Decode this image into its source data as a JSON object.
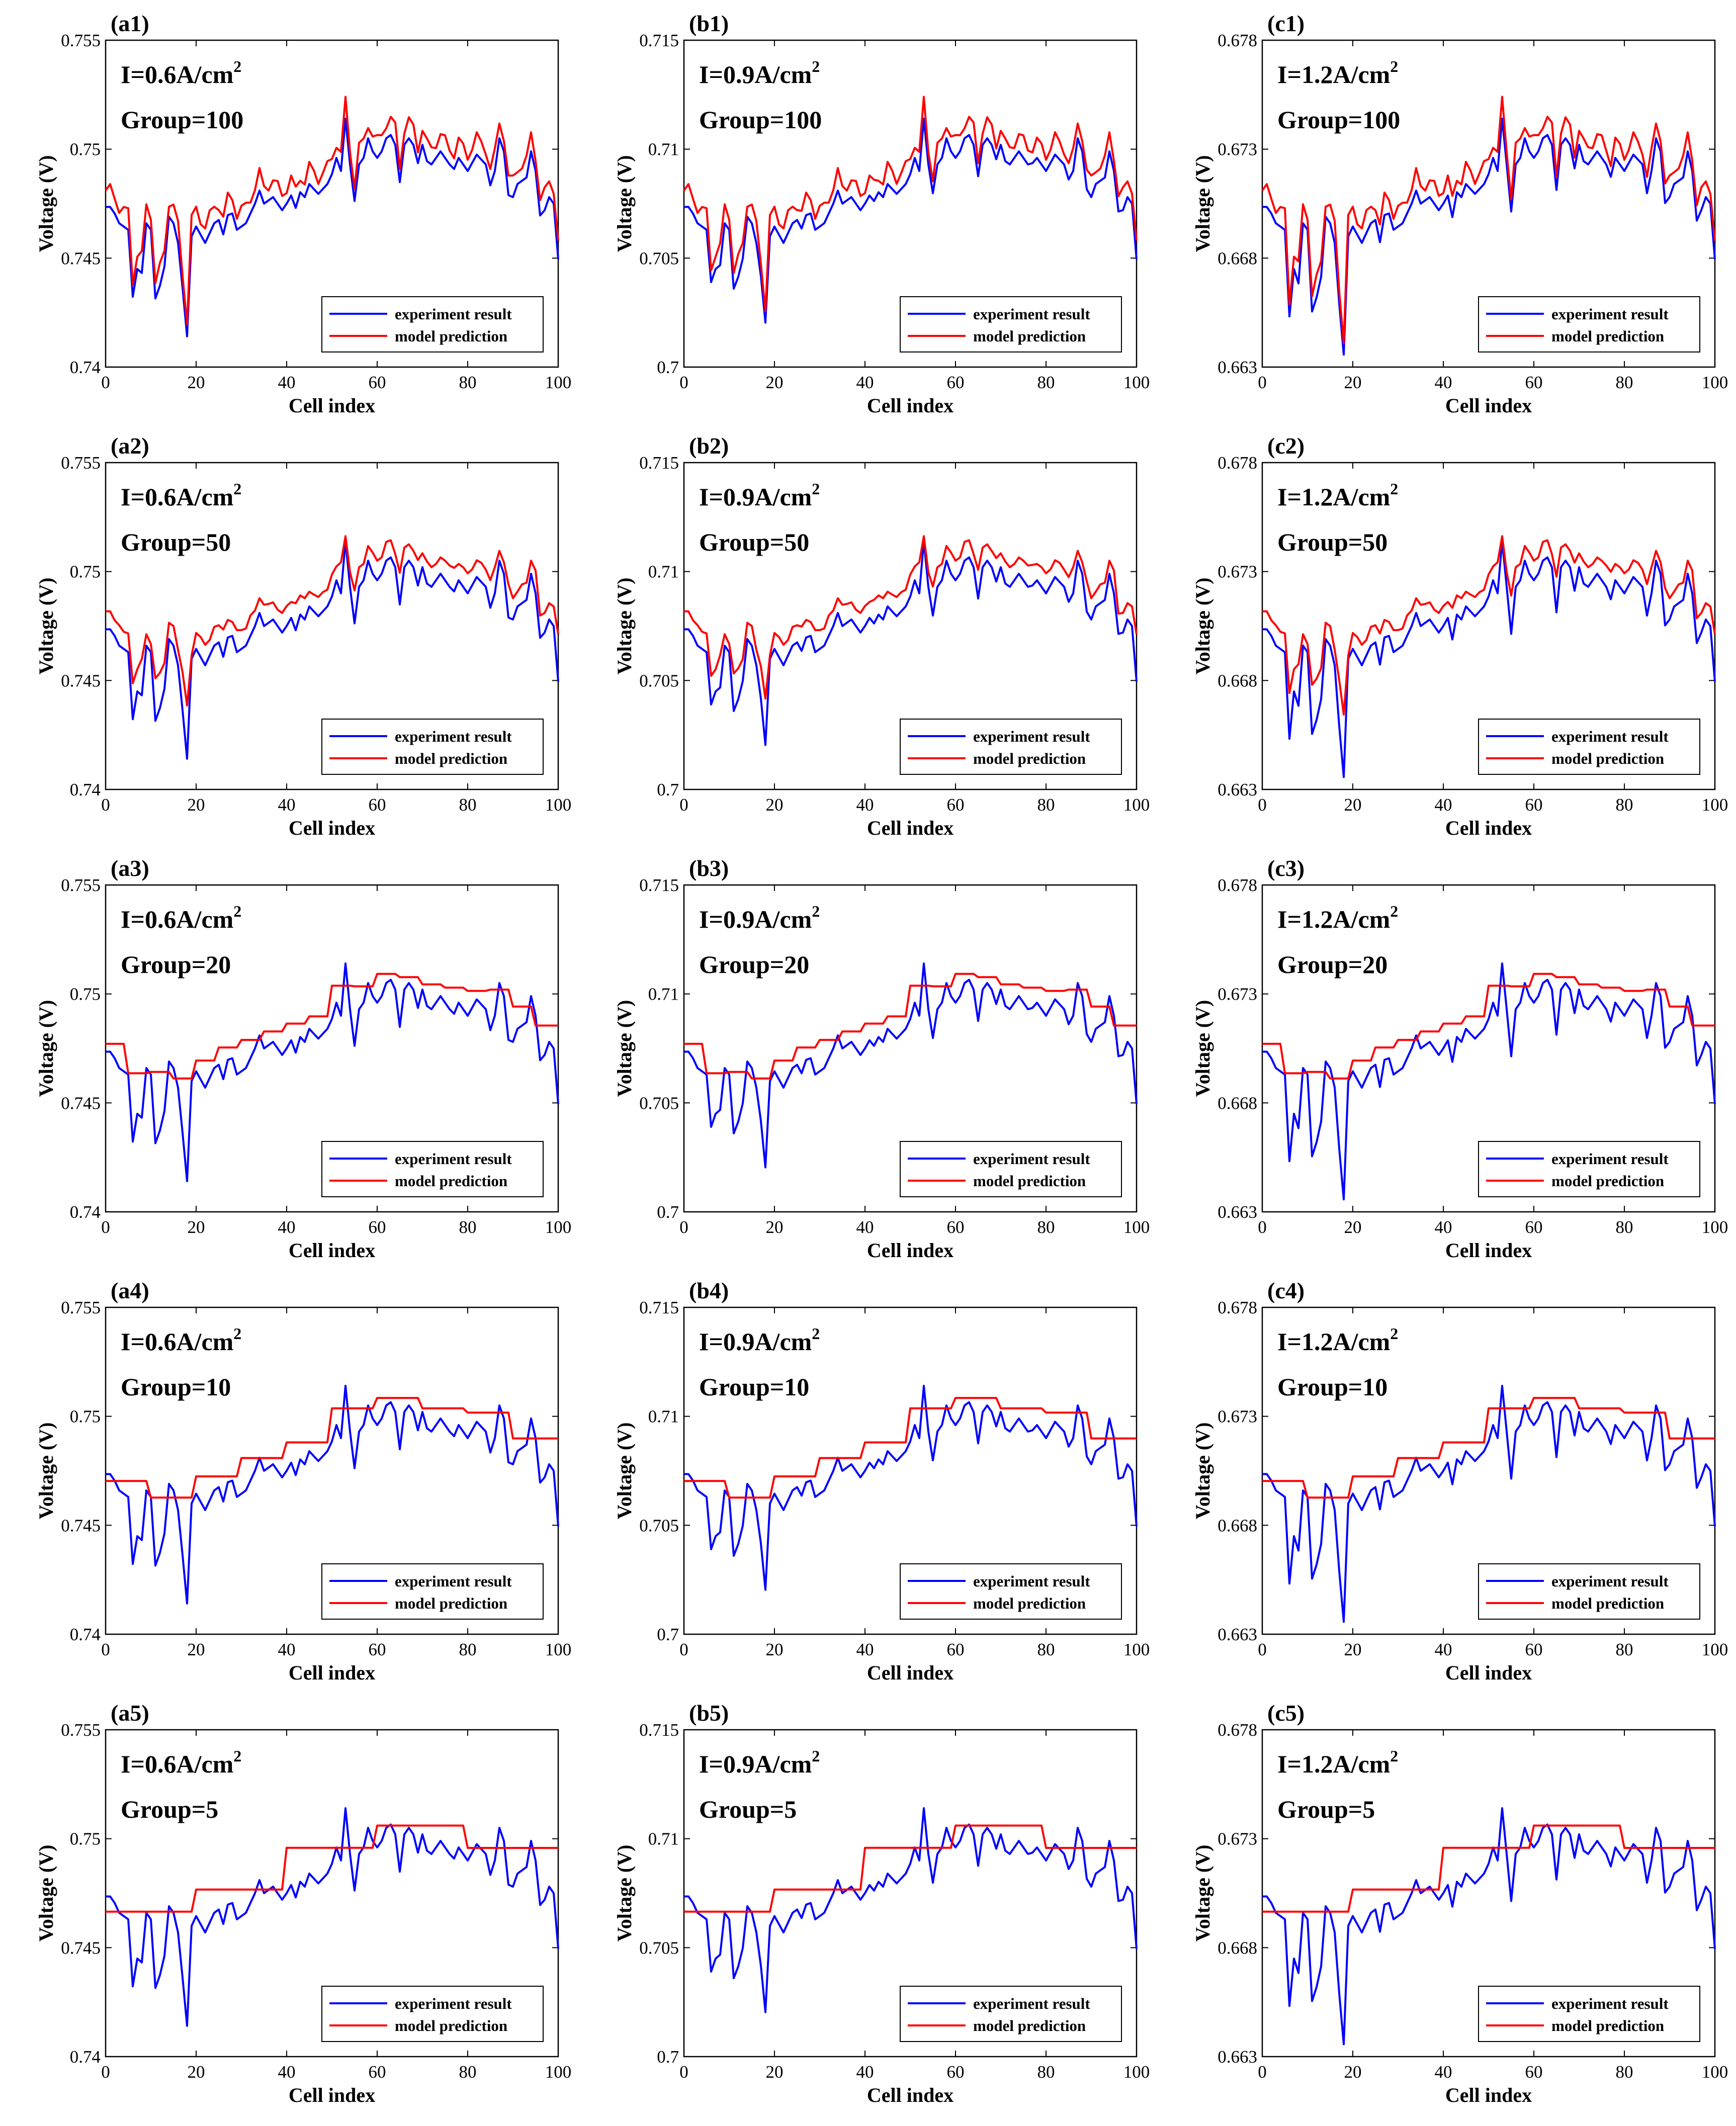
{
  "figure": {
    "xlabel": "Cell index",
    "ylabel": "Voltage (V)",
    "legend": [
      "experiment result",
      "model prediction"
    ],
    "colors": {
      "experiment": "#0000ff",
      "prediction": "#ff0000"
    },
    "x_ticks": [
      "0",
      "20",
      "40",
      "60",
      "80",
      "100"
    ]
  },
  "chart_data": [
    {
      "type": "line",
      "label": "(a1)",
      "current": "I=0.6A/cm",
      "current_sup": "2",
      "group": "Group=100",
      "group_size": 100,
      "xlim": [
        0,
        100
      ],
      "ylim": [
        0.74,
        0.755
      ],
      "yticks": [
        "0.74",
        "0.745",
        "0.75",
        "0.755"
      ],
      "xlabel": "Cell index",
      "ylabel": "Voltage (V)",
      "legend": "bottom-right",
      "series": [
        {
          "name": "experiment result"
        },
        {
          "name": "model prediction"
        }
      ]
    },
    {
      "type": "line",
      "label": "(b1)",
      "current": "I=0.9A/cm",
      "current_sup": "2",
      "group": "Group=100",
      "group_size": 100,
      "xlim": [
        0,
        100
      ],
      "ylim": [
        0.7,
        0.715
      ],
      "yticks": [
        "0.7",
        "0.705",
        "0.71",
        "0.715"
      ],
      "xlabel": "Cell index",
      "ylabel": "Voltage (V)",
      "legend": "bottom-right",
      "series": [
        {
          "name": "experiment result"
        },
        {
          "name": "model prediction"
        }
      ]
    },
    {
      "type": "line",
      "label": "(c1)",
      "current": "I=1.2A/cm",
      "current_sup": "2",
      "group": "Group=100",
      "group_size": 100,
      "xlim": [
        0,
        100
      ],
      "ylim": [
        0.663,
        0.678
      ],
      "yticks": [
        "0.663",
        "0.668",
        "0.673",
        "0.678"
      ],
      "xlabel": "Cell index",
      "ylabel": "Voltage (V)",
      "legend": "bottom-right",
      "series": [
        {
          "name": "experiment result"
        },
        {
          "name": "model prediction"
        }
      ]
    },
    {
      "type": "line",
      "label": "(a2)",
      "current": "I=0.6A/cm",
      "current_sup": "2",
      "group": "Group=50",
      "group_size": 50,
      "xlim": [
        0,
        100
      ],
      "ylim": [
        0.74,
        0.755
      ],
      "yticks": [
        "0.74",
        "0.745",
        "0.75",
        "0.755"
      ],
      "xlabel": "Cell index",
      "ylabel": "Voltage (V)",
      "legend": "bottom-right",
      "series": [
        {
          "name": "experiment result"
        },
        {
          "name": "model prediction"
        }
      ]
    },
    {
      "type": "line",
      "label": "(b2)",
      "current": "I=0.9A/cm",
      "current_sup": "2",
      "group": "Group=50",
      "group_size": 50,
      "xlim": [
        0,
        100
      ],
      "ylim": [
        0.7,
        0.715
      ],
      "yticks": [
        "0.7",
        "0.705",
        "0.71",
        "0.715"
      ],
      "xlabel": "Cell index",
      "ylabel": "Voltage (V)",
      "legend": "bottom-right",
      "series": [
        {
          "name": "experiment result"
        },
        {
          "name": "model prediction"
        }
      ]
    },
    {
      "type": "line",
      "label": "(c2)",
      "current": "I=1.2A/cm",
      "current_sup": "2",
      "group": "Group=50",
      "group_size": 50,
      "xlim": [
        0,
        100
      ],
      "ylim": [
        0.663,
        0.678
      ],
      "yticks": [
        "0.663",
        "0.668",
        "0.673",
        "0.678"
      ],
      "xlabel": "Cell index",
      "ylabel": "Voltage (V)",
      "legend": "bottom-right",
      "series": [
        {
          "name": "experiment result"
        },
        {
          "name": "model prediction"
        }
      ]
    },
    {
      "type": "line",
      "label": "(a3)",
      "current": "I=0.6A/cm",
      "current_sup": "2",
      "group": "Group=20",
      "group_size": 20,
      "xlim": [
        0,
        100
      ],
      "ylim": [
        0.74,
        0.755
      ],
      "yticks": [
        "0.74",
        "0.745",
        "0.75",
        "0.755"
      ],
      "xlabel": "Cell index",
      "ylabel": "Voltage (V)",
      "legend": "bottom-right",
      "series": [
        {
          "name": "experiment result"
        },
        {
          "name": "model prediction"
        }
      ]
    },
    {
      "type": "line",
      "label": "(b3)",
      "current": "I=0.9A/cm",
      "current_sup": "2",
      "group": "Group=20",
      "group_size": 20,
      "xlim": [
        0,
        100
      ],
      "ylim": [
        0.7,
        0.715
      ],
      "yticks": [
        "0.7",
        "0.705",
        "0.71",
        "0.715"
      ],
      "xlabel": "Cell index",
      "ylabel": "Voltage (V)",
      "legend": "bottom-right",
      "series": [
        {
          "name": "experiment result"
        },
        {
          "name": "model prediction"
        }
      ]
    },
    {
      "type": "line",
      "label": "(c3)",
      "current": "I=1.2A/cm",
      "current_sup": "2",
      "group": "Group=20",
      "group_size": 20,
      "xlim": [
        0,
        100
      ],
      "ylim": [
        0.663,
        0.678
      ],
      "yticks": [
        "0.663",
        "0.668",
        "0.673",
        "0.678"
      ],
      "xlabel": "Cell index",
      "ylabel": "Voltage (V)",
      "legend": "bottom-right",
      "series": [
        {
          "name": "experiment result"
        },
        {
          "name": "model prediction"
        }
      ]
    },
    {
      "type": "line",
      "label": "(a4)",
      "current": "I=0.6A/cm",
      "current_sup": "2",
      "group": "Group=10",
      "group_size": 10,
      "xlim": [
        0,
        100
      ],
      "ylim": [
        0.74,
        0.755
      ],
      "yticks": [
        "0.74",
        "0.745",
        "0.75",
        "0.755"
      ],
      "xlabel": "Cell index",
      "ylabel": "Voltage (V)",
      "legend": "bottom-right",
      "series": [
        {
          "name": "experiment result"
        },
        {
          "name": "model prediction"
        }
      ]
    },
    {
      "type": "line",
      "label": "(b4)",
      "current": "I=0.9A/cm",
      "current_sup": "2",
      "group": "Group=10",
      "group_size": 10,
      "xlim": [
        0,
        100
      ],
      "ylim": [
        0.7,
        0.715
      ],
      "yticks": [
        "0.7",
        "0.705",
        "0.71",
        "0.715"
      ],
      "xlabel": "Cell index",
      "ylabel": "Voltage (V)",
      "legend": "bottom-right",
      "series": [
        {
          "name": "experiment result"
        },
        {
          "name": "model prediction"
        }
      ]
    },
    {
      "type": "line",
      "label": "(c4)",
      "current": "I=1.2A/cm",
      "current_sup": "2",
      "group": "Group=10",
      "group_size": 10,
      "xlim": [
        0,
        100
      ],
      "ylim": [
        0.663,
        0.678
      ],
      "yticks": [
        "0.663",
        "0.668",
        "0.673",
        "0.678"
      ],
      "xlabel": "Cell index",
      "ylabel": "Voltage (V)",
      "legend": "bottom-right",
      "series": [
        {
          "name": "experiment result"
        },
        {
          "name": "model prediction"
        }
      ]
    },
    {
      "type": "line",
      "label": "(a5)",
      "current": "I=0.6A/cm",
      "current_sup": "2",
      "group": "Group=5",
      "group_size": 5,
      "xlim": [
        0,
        100
      ],
      "ylim": [
        0.74,
        0.755
      ],
      "yticks": [
        "0.74",
        "0.745",
        "0.75",
        "0.755"
      ],
      "xlabel": "Cell index",
      "ylabel": "Voltage (V)",
      "legend": "bottom-right",
      "series": [
        {
          "name": "experiment result"
        },
        {
          "name": "model prediction"
        }
      ]
    },
    {
      "type": "line",
      "label": "(b5)",
      "current": "I=0.9A/cm",
      "current_sup": "2",
      "group": "Group=5",
      "group_size": 5,
      "xlim": [
        0,
        100
      ],
      "ylim": [
        0.7,
        0.715
      ],
      "yticks": [
        "0.7",
        "0.705",
        "0.71",
        "0.715"
      ],
      "xlabel": "Cell index",
      "ylabel": "Voltage (V)",
      "legend": "bottom-right",
      "series": [
        {
          "name": "experiment result"
        },
        {
          "name": "model prediction"
        }
      ]
    },
    {
      "type": "line",
      "label": "(c5)",
      "current": "I=1.2A/cm",
      "current_sup": "2",
      "group": "Group=5",
      "group_size": 5,
      "xlim": [
        0,
        100
      ],
      "ylim": [
        0.663,
        0.678
      ],
      "yticks": [
        "0.663",
        "0.668",
        "0.673",
        "0.678"
      ],
      "xlabel": "Cell index",
      "ylabel": "Voltage (V)",
      "legend": "bottom-right",
      "series": [
        {
          "name": "experiment result"
        },
        {
          "name": "model prediction"
        }
      ]
    }
  ]
}
